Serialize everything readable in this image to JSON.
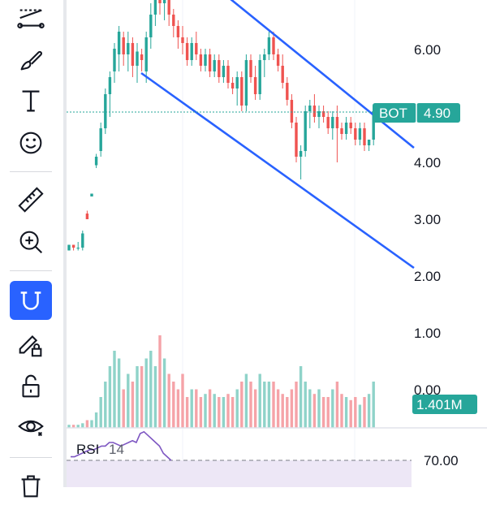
{
  "toolbar": {
    "tools": [
      {
        "name": "trend-line-tools-icon"
      },
      {
        "name": "brush-icon"
      },
      {
        "name": "text-tool-icon"
      },
      {
        "name": "emoji-icon"
      },
      {
        "name": "ruler-icon"
      },
      {
        "name": "zoom-in-icon"
      },
      {
        "name": "magnet-icon",
        "active": true
      },
      {
        "name": "lock-drawing-icon"
      },
      {
        "name": "unlock-icon"
      },
      {
        "name": "eye-icon"
      },
      {
        "name": "trash-icon"
      }
    ]
  },
  "price_axis": {
    "labels": [
      "6.00",
      "4.00",
      "3.00",
      "2.00",
      "1.00",
      "0.00"
    ]
  },
  "ticker_tag": {
    "symbol": "BOT",
    "price": "4.90"
  },
  "volume_tag": {
    "value": "1.401M"
  },
  "rsi": {
    "title": "RSI",
    "period": "14",
    "upper_level": "70.00"
  },
  "colors": {
    "up": "#26a69a",
    "down": "#ef5350",
    "vol_up": "#8fd3c9",
    "vol_down": "#f5a3a8",
    "channel": "#2962ff",
    "rsi_line": "#7e57c2",
    "rsi_band": "#ede7f6",
    "accent": "#2962ff"
  },
  "chart_data": {
    "type": "candlestick",
    "y_axis_ticks": [
      0,
      1,
      2,
      3,
      4,
      6
    ],
    "last_price": 4.9,
    "candles": [
      [
        2.45,
        2.55,
        2.45,
        2.55
      ],
      [
        2.55,
        2.55,
        2.45,
        2.5
      ],
      [
        2.5,
        2.6,
        2.45,
        2.5
      ],
      [
        2.5,
        2.8,
        2.45,
        2.75
      ],
      [
        3.1,
        3.15,
        3.0,
        3.0
      ],
      [
        3.4,
        3.45,
        3.4,
        3.45
      ],
      [
        3.95,
        4.15,
        3.9,
        4.1
      ],
      [
        4.2,
        4.7,
        4.1,
        4.6
      ],
      [
        4.6,
        5.3,
        4.5,
        5.2
      ],
      [
        5.2,
        5.6,
        4.8,
        5.5
      ],
      [
        5.6,
        6.1,
        5.4,
        6.0
      ],
      [
        5.9,
        6.4,
        5.6,
        6.3
      ],
      [
        6.2,
        6.3,
        5.7,
        5.9
      ],
      [
        5.9,
        6.3,
        5.6,
        6.1
      ],
      [
        6.1,
        6.2,
        5.5,
        5.7
      ],
      [
        5.7,
        6.1,
        5.4,
        5.95
      ],
      [
        5.9,
        6.0,
        5.6,
        5.8
      ],
      [
        5.6,
        6.3,
        5.4,
        6.2
      ],
      [
        6.2,
        6.8,
        6.0,
        6.6
      ],
      [
        6.6,
        7.1,
        6.4,
        7.0
      ],
      [
        7.0,
        7.2,
        6.6,
        6.8
      ],
      [
        6.8,
        7.1,
        6.5,
        6.9
      ],
      [
        6.9,
        7.0,
        6.4,
        6.6
      ],
      [
        6.6,
        6.7,
        6.2,
        6.4
      ],
      [
        6.4,
        6.5,
        6.0,
        6.2
      ],
      [
        6.2,
        6.4,
        5.9,
        6.1
      ],
      [
        6.1,
        6.2,
        5.7,
        5.8
      ],
      [
        5.8,
        6.2,
        5.7,
        6.1
      ],
      [
        6.1,
        6.3,
        5.8,
        5.9
      ],
      [
        5.9,
        6.0,
        5.6,
        5.7
      ],
      [
        5.7,
        6.0,
        5.6,
        5.9
      ],
      [
        5.9,
        6.0,
        5.5,
        5.6
      ],
      [
        5.6,
        5.9,
        5.5,
        5.8
      ],
      [
        5.8,
        5.9,
        5.4,
        5.5
      ],
      [
        5.5,
        5.8,
        5.4,
        5.7
      ],
      [
        5.7,
        5.8,
        5.3,
        5.4
      ],
      [
        5.4,
        5.5,
        5.2,
        5.3
      ],
      [
        5.3,
        5.6,
        5.0,
        5.5
      ],
      [
        5.5,
        5.6,
        4.9,
        5.0
      ],
      [
        5.0,
        5.9,
        4.9,
        5.8
      ],
      [
        5.8,
        5.9,
        5.4,
        5.5
      ],
      [
        5.5,
        5.7,
        5.1,
        5.2
      ],
      [
        5.2,
        5.9,
        5.1,
        5.8
      ],
      [
        5.8,
        6.0,
        5.5,
        5.9
      ],
      [
        5.9,
        6.3,
        5.8,
        6.2
      ],
      [
        6.2,
        6.3,
        5.8,
        5.9
      ],
      [
        5.9,
        6.0,
        5.6,
        5.7
      ],
      [
        5.7,
        5.9,
        5.3,
        5.4
      ],
      [
        5.4,
        5.5,
        5.0,
        5.1
      ],
      [
        5.1,
        5.2,
        4.6,
        4.7
      ],
      [
        4.7,
        4.8,
        4.0,
        4.1
      ],
      [
        4.1,
        4.3,
        3.7,
        4.2
      ],
      [
        4.2,
        5.0,
        4.1,
        4.9
      ],
      [
        4.9,
        5.1,
        4.6,
        5.0
      ],
      [
        5.0,
        5.2,
        4.7,
        4.8
      ],
      [
        4.8,
        5.0,
        4.6,
        4.9
      ],
      [
        4.9,
        5.0,
        4.7,
        4.8
      ],
      [
        4.8,
        4.9,
        4.5,
        4.6
      ],
      [
        4.6,
        4.9,
        4.4,
        4.8
      ],
      [
        4.8,
        5.0,
        4.0,
        4.6
      ],
      [
        4.6,
        4.7,
        4.4,
        4.5
      ],
      [
        4.5,
        4.8,
        4.4,
        4.7
      ],
      [
        4.7,
        4.8,
        4.5,
        4.6
      ],
      [
        4.6,
        4.7,
        4.3,
        4.4
      ],
      [
        4.4,
        4.7,
        4.3,
        4.6
      ],
      [
        4.6,
        4.7,
        4.2,
        4.3
      ],
      [
        4.3,
        4.4,
        4.2,
        4.4
      ],
      [
        4.4,
        4.9,
        4.3,
        4.9
      ]
    ],
    "volumes": [
      0.02,
      0.02,
      0.02,
      0.03,
      0.05,
      0.05,
      0.1,
      0.2,
      0.3,
      0.4,
      0.5,
      0.45,
      0.25,
      0.35,
      0.3,
      0.4,
      0.4,
      0.45,
      0.5,
      0.4,
      0.6,
      0.45,
      0.35,
      0.3,
      0.25,
      0.35,
      0.2,
      0.25,
      0.25,
      0.2,
      0.22,
      0.25,
      0.22,
      0.2,
      0.2,
      0.22,
      0.2,
      0.25,
      0.3,
      0.35,
      0.3,
      0.25,
      0.35,
      0.3,
      0.3,
      0.3,
      0.25,
      0.22,
      0.2,
      0.25,
      0.3,
      0.4,
      0.3,
      0.25,
      0.22,
      0.25,
      0.2,
      0.2,
      0.25,
      0.3,
      0.22,
      0.2,
      0.18,
      0.2,
      0.15,
      0.2,
      0.22,
      0.3
    ],
    "vol_scale_max": 1.0,
    "rsi_values": [
      72,
      72,
      73,
      74,
      75,
      76,
      76,
      77,
      78,
      78,
      80,
      80,
      79,
      78,
      79,
      80,
      81,
      80,
      85,
      86,
      84,
      82,
      80,
      78,
      74,
      72,
      70
    ]
  }
}
